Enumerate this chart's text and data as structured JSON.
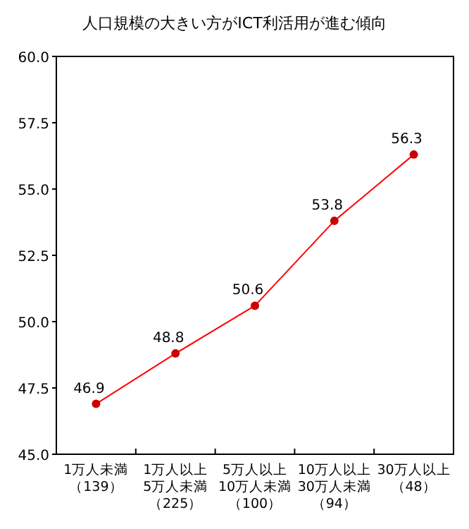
{
  "chart_data": {
    "type": "line",
    "title": "人口規模の大きい方がICT利活用が進む傾向",
    "categories": [
      "1万人未満（139）",
      "1万人以上5万人未満（225）",
      "5万人以上10万人未満（100）",
      "10万人以上30万人未満（94）",
      "30万人以上（48）"
    ],
    "series": [
      {
        "color": "#ff0000",
        "values": [
          46.9,
          48.8,
          50.6,
          53.8,
          56.3
        ]
      }
    ],
    "ylim": [
      45,
      60
    ],
    "yticks": [
      {
        "value": 45,
        "label": "45.0"
      },
      {
        "value": 47.5,
        "label": "47.5"
      },
      {
        "value": 50,
        "label": "50.0"
      },
      {
        "value": 52.5,
        "label": "52.5"
      },
      {
        "value": 55,
        "label": "55.0"
      },
      {
        "value": 57.5,
        "label": "57.5"
      },
      {
        "value": 60,
        "label": "60.0"
      }
    ],
    "data_labels": true,
    "marker": "circle",
    "grid": false
  }
}
